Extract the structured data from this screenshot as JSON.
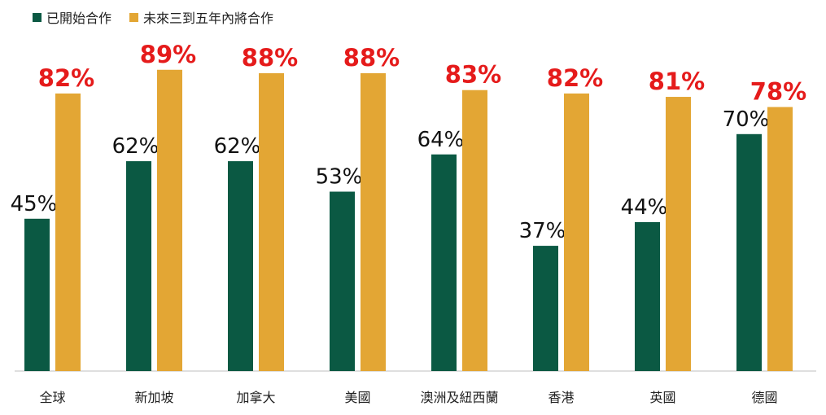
{
  "chart_data": {
    "type": "bar",
    "categories": [
      "全球",
      "新加坡",
      "加拿大",
      "美國",
      "澳洲及紐西蘭",
      "香港",
      "英國",
      "德國"
    ],
    "series": [
      {
        "name": "已開始合作",
        "values": [
          45,
          62,
          62,
          53,
          64,
          37,
          44,
          70
        ],
        "labels": [
          "45%",
          "62%",
          "62%",
          "53%",
          "64%",
          "37%",
          "44%",
          "70%"
        ]
      },
      {
        "name": "未來三到五年內將合作",
        "values": [
          82,
          89,
          88,
          88,
          83,
          82,
          81,
          78
        ],
        "labels": [
          "82%",
          "89%",
          "88%",
          "88%",
          "83%",
          "82%",
          "81%",
          "78%"
        ]
      }
    ],
    "ylim": [
      0,
      100
    ],
    "legend_position": "top-left",
    "grid": false,
    "colors": {
      "series0": "#0b5943",
      "series1": "#e3a634",
      "series0_label": "#111111",
      "series1_label": "#e51b1b",
      "axis": "#bfbfbf"
    }
  }
}
